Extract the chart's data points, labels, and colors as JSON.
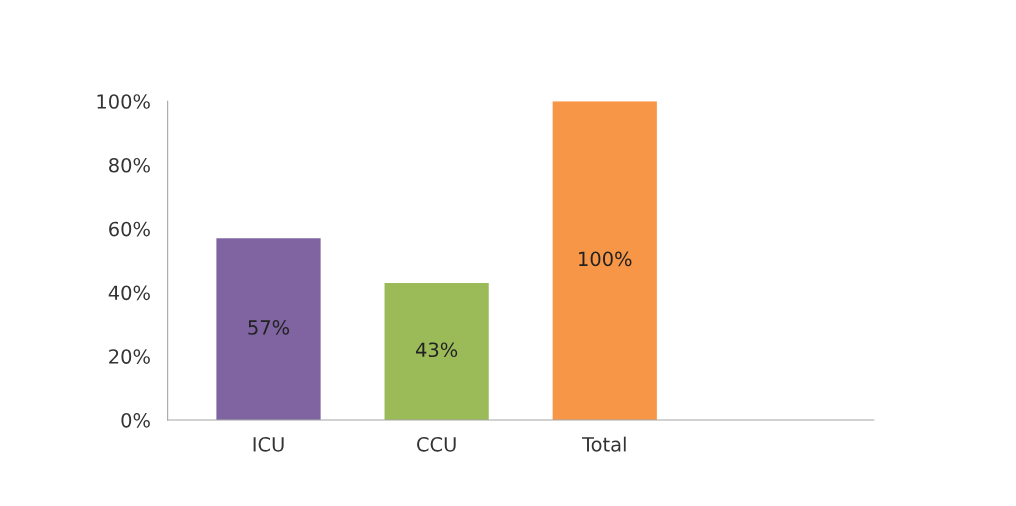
{
  "chart_data": {
    "type": "bar",
    "categories": [
      "ICU",
      "CCU",
      "Total"
    ],
    "values": [
      57,
      43,
      100
    ],
    "colors": [
      "#8064a2",
      "#9bbb59",
      "#f79646"
    ],
    "value_labels": [
      "57%",
      "43%",
      "100%"
    ],
    "ylim": [
      0,
      100
    ],
    "yticks": [
      {
        "value": 0,
        "label": "0%"
      },
      {
        "value": 20,
        "label": "20%"
      },
      {
        "value": 40,
        "label": "40%"
      },
      {
        "value": 60,
        "label": "60%"
      },
      {
        "value": 80,
        "label": "80%"
      },
      {
        "value": 100,
        "label": "100%"
      }
    ]
  }
}
